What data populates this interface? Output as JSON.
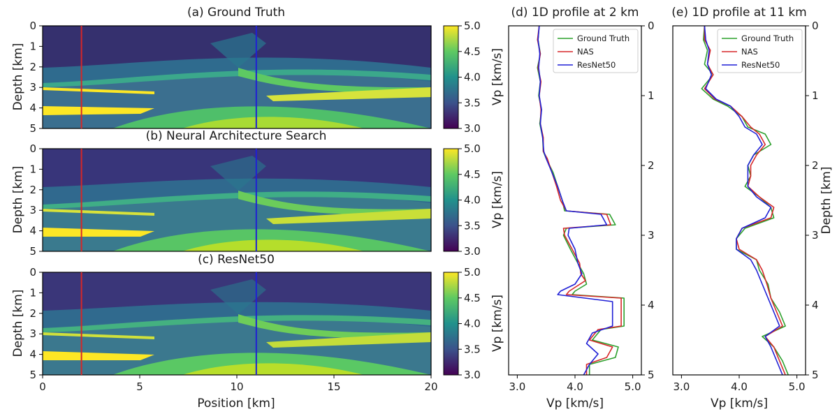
{
  "chart_data": [
    {
      "type": "heatmap",
      "title": "(a) Ground Truth",
      "xlabel": "",
      "ylabel": "Depth [km]",
      "xlim": [
        0,
        20
      ],
      "ylim": [
        0,
        5
      ],
      "x_ticks": [
        "0",
        "5",
        "10",
        "15",
        "20"
      ],
      "y_ticks": [
        "0",
        "1",
        "2",
        "3",
        "4",
        "5"
      ],
      "y_inverted": true,
      "colormap": "viridis",
      "colorbar": {
        "label": "Vp [km/s]",
        "range": [
          3.0,
          5.0
        ],
        "ticks": [
          "3.0",
          "3.5",
          "4.0",
          "4.5",
          "5.0"
        ]
      },
      "profile_lines": [
        {
          "x": 2,
          "color": "#d62728"
        },
        {
          "x": 11,
          "color": "#1f1fd6"
        }
      ]
    },
    {
      "type": "heatmap",
      "title": "(b) Neural Architecture Search",
      "xlabel": "",
      "ylabel": "Depth [km]",
      "xlim": [
        0,
        20
      ],
      "ylim": [
        0,
        5
      ],
      "x_ticks": [
        "0",
        "5",
        "10",
        "15",
        "20"
      ],
      "y_ticks": [
        "0",
        "1",
        "2",
        "3",
        "4",
        "5"
      ],
      "y_inverted": true,
      "colormap": "viridis",
      "colorbar": {
        "label": "Vp [km/s]",
        "range": [
          3.0,
          5.0
        ],
        "ticks": [
          "3.0",
          "3.5",
          "4.0",
          "4.5",
          "5.0"
        ]
      },
      "profile_lines": [
        {
          "x": 2,
          "color": "#d62728"
        },
        {
          "x": 11,
          "color": "#1f1fd6"
        }
      ]
    },
    {
      "type": "heatmap",
      "title": "(c) ResNet50",
      "xlabel": "Position [km]",
      "ylabel": "Depth [km]",
      "xlim": [
        0,
        20
      ],
      "ylim": [
        0,
        5
      ],
      "x_ticks": [
        "0",
        "5",
        "10",
        "15",
        "20"
      ],
      "y_ticks": [
        "0",
        "1",
        "2",
        "3",
        "4",
        "5"
      ],
      "y_inverted": true,
      "colormap": "viridis",
      "colorbar": {
        "label": "Vp [km/s]",
        "range": [
          3.0,
          5.0
        ],
        "ticks": [
          "3.0",
          "3.5",
          "4.0",
          "4.5",
          "5.0"
        ]
      },
      "profile_lines": [
        {
          "x": 2,
          "color": "#d62728"
        },
        {
          "x": 11,
          "color": "#1f1fd6"
        }
      ]
    },
    {
      "type": "line",
      "title": "(d) 1D profile at 2 km",
      "xlabel": "Vp [km/s]",
      "ylabel": "",
      "xlim": [
        2.85,
        5.15
      ],
      "ylim": [
        0,
        5
      ],
      "y_inverted": true,
      "x_ticks": [
        "3.0",
        "4.0",
        "5.0"
      ],
      "y_ticks": [
        "0",
        "1",
        "2",
        "3",
        "4",
        "5"
      ],
      "legend_position": "top-right",
      "series": [
        {
          "name": "Ground Truth",
          "color": "#2ca02c",
          "points": [
            [
              3.38,
              0
            ],
            [
              3.36,
              0.2
            ],
            [
              3.4,
              0.4
            ],
            [
              3.35,
              0.6
            ],
            [
              3.4,
              0.8
            ],
            [
              3.37,
              1.0
            ],
            [
              3.42,
              1.2
            ],
            [
              3.39,
              1.4
            ],
            [
              3.44,
              1.6
            ],
            [
              3.45,
              1.8
            ],
            [
              3.5,
              1.9
            ],
            [
              3.62,
              2.1
            ],
            [
              3.7,
              2.3
            ],
            [
              3.78,
              2.5
            ],
            [
              3.82,
              2.65
            ],
            [
              4.6,
              2.7
            ],
            [
              4.7,
              2.85
            ],
            [
              3.85,
              2.9
            ],
            [
              3.8,
              3.0
            ],
            [
              3.92,
              3.2
            ],
            [
              4.05,
              3.4
            ],
            [
              4.15,
              3.55
            ],
            [
              4.2,
              3.7
            ],
            [
              4.0,
              3.8
            ],
            [
              3.95,
              3.85
            ],
            [
              4.85,
              3.9
            ],
            [
              4.85,
              4.3
            ],
            [
              4.45,
              4.35
            ],
            [
              4.3,
              4.5
            ],
            [
              4.75,
              4.6
            ],
            [
              4.7,
              4.75
            ],
            [
              4.25,
              4.85
            ],
            [
              4.25,
              5.0
            ]
          ]
        },
        {
          "name": "NAS",
          "color": "#d62728",
          "points": [
            [
              3.38,
              0
            ],
            [
              3.35,
              0.2
            ],
            [
              3.4,
              0.4
            ],
            [
              3.36,
              0.6
            ],
            [
              3.41,
              0.8
            ],
            [
              3.38,
              1.0
            ],
            [
              3.41,
              1.2
            ],
            [
              3.4,
              1.4
            ],
            [
              3.45,
              1.6
            ],
            [
              3.45,
              1.8
            ],
            [
              3.52,
              1.9
            ],
            [
              3.6,
              2.1
            ],
            [
              3.68,
              2.3
            ],
            [
              3.75,
              2.5
            ],
            [
              3.85,
              2.65
            ],
            [
              4.55,
              2.7
            ],
            [
              4.62,
              2.85
            ],
            [
              3.8,
              2.9
            ],
            [
              3.82,
              3.0
            ],
            [
              3.95,
              3.2
            ],
            [
              4.08,
              3.4
            ],
            [
              4.1,
              3.55
            ],
            [
              4.18,
              3.65
            ],
            [
              3.9,
              3.8
            ],
            [
              3.85,
              3.85
            ],
            [
              4.8,
              3.9
            ],
            [
              4.8,
              4.3
            ],
            [
              4.4,
              4.35
            ],
            [
              4.25,
              4.5
            ],
            [
              4.65,
              4.6
            ],
            [
              4.55,
              4.75
            ],
            [
              4.2,
              4.85
            ],
            [
              4.2,
              5.0
            ]
          ]
        },
        {
          "name": "ResNet50",
          "color": "#1f1fd6",
          "points": [
            [
              3.38,
              0
            ],
            [
              3.36,
              0.2
            ],
            [
              3.39,
              0.4
            ],
            [
              3.37,
              0.6
            ],
            [
              3.4,
              0.8
            ],
            [
              3.38,
              1.0
            ],
            [
              3.42,
              1.2
            ],
            [
              3.4,
              1.4
            ],
            [
              3.44,
              1.6
            ],
            [
              3.46,
              1.8
            ],
            [
              3.5,
              1.9
            ],
            [
              3.6,
              2.1
            ],
            [
              3.7,
              2.3
            ],
            [
              3.78,
              2.5
            ],
            [
              3.85,
              2.65
            ],
            [
              4.45,
              2.7
            ],
            [
              4.55,
              2.85
            ],
            [
              3.9,
              2.9
            ],
            [
              3.88,
              3.0
            ],
            [
              4.0,
              3.2
            ],
            [
              4.05,
              3.4
            ],
            [
              4.12,
              3.55
            ],
            [
              4.0,
              3.7
            ],
            [
              3.75,
              3.8
            ],
            [
              3.7,
              3.85
            ],
            [
              4.65,
              3.95
            ],
            [
              4.65,
              4.3
            ],
            [
              4.3,
              4.4
            ],
            [
              4.2,
              4.55
            ],
            [
              4.4,
              4.7
            ],
            [
              4.25,
              4.85
            ],
            [
              4.15,
              5.0
            ]
          ]
        }
      ]
    },
    {
      "type": "line",
      "title": "(e) 1D profile at 11 km",
      "xlabel": "Vp [km/s]",
      "ylabel": "Depth [km]",
      "xlim": [
        2.85,
        5.15
      ],
      "ylim": [
        0,
        5
      ],
      "y_inverted": true,
      "x_ticks": [
        "3.0",
        "4.0",
        "5.0"
      ],
      "y_ticks": [
        "0",
        "1",
        "2",
        "3",
        "4",
        "5"
      ],
      "legend_position": "top-right",
      "series": [
        {
          "name": "Ground Truth",
          "color": "#2ca02c",
          "points": [
            [
              3.4,
              0
            ],
            [
              3.38,
              0.2
            ],
            [
              3.45,
              0.35
            ],
            [
              3.4,
              0.55
            ],
            [
              3.55,
              0.7
            ],
            [
              3.35,
              0.9
            ],
            [
              3.55,
              1.05
            ],
            [
              3.8,
              1.15
            ],
            [
              4.05,
              1.3
            ],
            [
              4.15,
              1.45
            ],
            [
              4.45,
              1.55
            ],
            [
              4.55,
              1.7
            ],
            [
              4.25,
              1.85
            ],
            [
              4.15,
              2.0
            ],
            [
              4.2,
              2.15
            ],
            [
              4.1,
              2.3
            ],
            [
              4.35,
              2.45
            ],
            [
              4.55,
              2.6
            ],
            [
              4.6,
              2.75
            ],
            [
              4.1,
              2.9
            ],
            [
              3.95,
              3.05
            ],
            [
              3.95,
              3.2
            ],
            [
              4.3,
              3.35
            ],
            [
              4.35,
              3.5
            ],
            [
              4.5,
              3.7
            ],
            [
              4.55,
              3.9
            ],
            [
              4.7,
              4.1
            ],
            [
              4.8,
              4.3
            ],
            [
              4.4,
              4.45
            ],
            [
              4.6,
              4.6
            ],
            [
              4.75,
              4.8
            ],
            [
              4.85,
              5.0
            ]
          ]
        },
        {
          "name": "NAS",
          "color": "#d62728",
          "points": [
            [
              3.4,
              0
            ],
            [
              3.4,
              0.2
            ],
            [
              3.5,
              0.35
            ],
            [
              3.45,
              0.55
            ],
            [
              3.55,
              0.7
            ],
            [
              3.4,
              0.9
            ],
            [
              3.58,
              1.05
            ],
            [
              3.85,
              1.15
            ],
            [
              4.05,
              1.3
            ],
            [
              4.2,
              1.45
            ],
            [
              4.35,
              1.55
            ],
            [
              4.45,
              1.7
            ],
            [
              4.3,
              1.85
            ],
            [
              4.2,
              2.0
            ],
            [
              4.2,
              2.15
            ],
            [
              4.15,
              2.3
            ],
            [
              4.35,
              2.45
            ],
            [
              4.6,
              2.6
            ],
            [
              4.55,
              2.75
            ],
            [
              4.05,
              2.9
            ],
            [
              3.95,
              3.05
            ],
            [
              4.0,
              3.2
            ],
            [
              4.3,
              3.35
            ],
            [
              4.4,
              3.5
            ],
            [
              4.48,
              3.7
            ],
            [
              4.55,
              3.9
            ],
            [
              4.65,
              4.1
            ],
            [
              4.75,
              4.3
            ],
            [
              4.45,
              4.45
            ],
            [
              4.6,
              4.6
            ],
            [
              4.7,
              4.8
            ],
            [
              4.8,
              5.0
            ]
          ]
        },
        {
          "name": "ResNet50",
          "color": "#1f1fd6",
          "points": [
            [
              3.4,
              0
            ],
            [
              3.42,
              0.2
            ],
            [
              3.48,
              0.35
            ],
            [
              3.45,
              0.55
            ],
            [
              3.52,
              0.7
            ],
            [
              3.42,
              0.9
            ],
            [
              3.6,
              1.05
            ],
            [
              3.85,
              1.15
            ],
            [
              4.0,
              1.3
            ],
            [
              4.1,
              1.45
            ],
            [
              4.3,
              1.55
            ],
            [
              4.4,
              1.7
            ],
            [
              4.25,
              1.85
            ],
            [
              4.15,
              2.0
            ],
            [
              4.15,
              2.15
            ],
            [
              4.15,
              2.3
            ],
            [
              4.3,
              2.45
            ],
            [
              4.55,
              2.6
            ],
            [
              4.45,
              2.75
            ],
            [
              4.05,
              2.9
            ],
            [
              3.95,
              3.05
            ],
            [
              3.95,
              3.2
            ],
            [
              4.2,
              3.35
            ],
            [
              4.3,
              3.5
            ],
            [
              4.4,
              3.7
            ],
            [
              4.5,
              3.9
            ],
            [
              4.6,
              4.1
            ],
            [
              4.7,
              4.3
            ],
            [
              4.45,
              4.45
            ],
            [
              4.55,
              4.6
            ],
            [
              4.65,
              4.8
            ],
            [
              4.75,
              5.0
            ]
          ]
        }
      ]
    }
  ]
}
